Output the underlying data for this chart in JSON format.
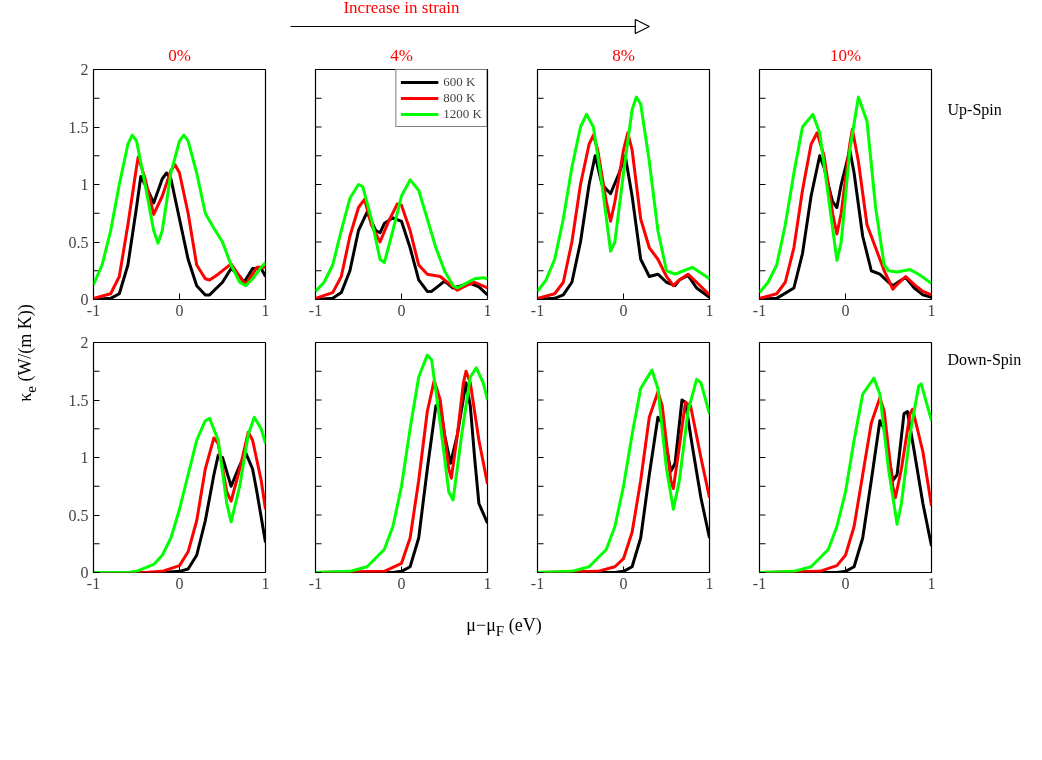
{
  "chart_data": [
    {
      "type": "line",
      "title": "0%",
      "ylabel": "κ$_{e}$ (W/(m K))",
      "xlim": [
        -1,
        1
      ],
      "ylim": [
        0,
        2
      ],
      "xticks": [
        -1,
        0,
        1
      ],
      "yticks": [
        0,
        {
          "value": 0.25,
          "label": null
        },
        0.5,
        {
          "value": 0.75,
          "label": null
        },
        1,
        {
          "value": 1.25,
          "label": null
        },
        1.5,
        {
          "value": 1.75,
          "label": null
        },
        2
      ],
      "series": [
        {
          "color": "#000000",
          "x": [
            -1,
            -0.8,
            -0.7,
            -0.6,
            -0.5,
            -0.45,
            -0.4,
            -0.3,
            -0.2,
            -0.15,
            -0.1,
            0,
            0.1,
            0.2,
            0.3,
            0.35,
            0.5,
            0.6,
            0.7,
            0.75,
            0.85,
            0.95,
            1
          ],
          "values": [
            0,
            0.01,
            0.05,
            0.3,
            0.8,
            1.07,
            1.0,
            0.84,
            1.05,
            1.1,
            1.05,
            0.7,
            0.35,
            0.12,
            0.04,
            0.04,
            0.15,
            0.27,
            0.2,
            0.15,
            0.27,
            0.27,
            0.2
          ]
        },
        {
          "color": "#ff0000",
          "x": [
            -1,
            -0.8,
            -0.7,
            -0.6,
            -0.5,
            -0.48,
            -0.4,
            -0.3,
            -0.2,
            -0.1,
            -0.05,
            0,
            0.1,
            0.2,
            0.3,
            0.35,
            0.45,
            0.6,
            0.7,
            0.77,
            0.85,
            0.9,
            1
          ],
          "values": [
            0.01,
            0.05,
            0.2,
            0.65,
            1.15,
            1.24,
            1.05,
            0.74,
            0.9,
            1.12,
            1.17,
            1.1,
            0.75,
            0.3,
            0.18,
            0.17,
            0.22,
            0.31,
            0.2,
            0.13,
            0.22,
            0.28,
            0.28
          ]
        },
        {
          "color": "#00ff00",
          "x": [
            -1,
            -0.9,
            -0.8,
            -0.7,
            -0.6,
            -0.55,
            -0.5,
            -0.4,
            -0.3,
            -0.25,
            -0.2,
            -0.1,
            0,
            0.05,
            0.1,
            0.2,
            0.3,
            0.4,
            0.5,
            0.6,
            0.7,
            0.77,
            0.85,
            0.95,
            1
          ],
          "values": [
            0.13,
            0.3,
            0.6,
            1.0,
            1.35,
            1.43,
            1.38,
            1.0,
            0.6,
            0.49,
            0.6,
            1.1,
            1.38,
            1.43,
            1.38,
            1.1,
            0.75,
            0.62,
            0.5,
            0.3,
            0.15,
            0.12,
            0.18,
            0.28,
            0.32
          ]
        }
      ]
    },
    {
      "type": "line",
      "title": "4%",
      "annotations": [
        "Increase in strain"
      ],
      "legend": "top right",
      "tick_labels": "x",
      "xlim": [
        -1,
        1
      ],
      "ylim": [
        0,
        2
      ],
      "xticks": [
        -1,
        0,
        1
      ],
      "yticks": [
        0,
        {
          "value": 0.25,
          "label": null
        },
        {
          "value": 0.5,
          "label": null
        },
        {
          "value": 0.75,
          "label": null
        },
        {
          "value": 1,
          "label": null
        },
        {
          "value": 1.25,
          "label": null
        },
        {
          "value": 1.5,
          "label": null
        },
        {
          "value": 1.75,
          "label": null
        },
        {
          "value": 2,
          "label": null
        }
      ],
      "series": [
        {
          "name": "600 K",
          "color": "#000000",
          "x": [
            -1,
            -0.8,
            -0.7,
            -0.6,
            -0.5,
            -0.4,
            -0.3,
            -0.25,
            -0.2,
            -0.1,
            0,
            0.1,
            0.2,
            0.3,
            0.35,
            0.45,
            0.5,
            0.6,
            0.7,
            0.8,
            0.9,
            1
          ],
          "values": [
            0,
            0.01,
            0.06,
            0.25,
            0.6,
            0.76,
            0.6,
            0.58,
            0.66,
            0.71,
            0.68,
            0.45,
            0.17,
            0.07,
            0.07,
            0.13,
            0.16,
            0.1,
            0.12,
            0.14,
            0.11,
            0.04
          ]
        },
        {
          "name": "800 K",
          "color": "#ff0000",
          "x": [
            -1,
            -0.8,
            -0.7,
            -0.6,
            -0.5,
            -0.43,
            -0.35,
            -0.25,
            -0.15,
            -0.05,
            0,
            0.1,
            0.2,
            0.3,
            0.45,
            0.55,
            0.65,
            0.75,
            0.85,
            1
          ],
          "values": [
            0.01,
            0.06,
            0.2,
            0.55,
            0.8,
            0.87,
            0.65,
            0.5,
            0.68,
            0.83,
            0.82,
            0.6,
            0.3,
            0.22,
            0.2,
            0.14,
            0.08,
            0.12,
            0.15,
            0.1
          ]
        },
        {
          "name": "1200 K",
          "color": "#00ff00",
          "x": [
            -1,
            -0.9,
            -0.8,
            -0.7,
            -0.6,
            -0.5,
            -0.45,
            -0.35,
            -0.25,
            -0.2,
            -0.1,
            0,
            0.1,
            0.2,
            0.3,
            0.4,
            0.5,
            0.6,
            0.65,
            0.75,
            0.85,
            0.95,
            1
          ],
          "values": [
            0.07,
            0.15,
            0.3,
            0.6,
            0.88,
            1.0,
            0.98,
            0.7,
            0.35,
            0.32,
            0.6,
            0.9,
            1.04,
            0.95,
            0.7,
            0.45,
            0.25,
            0.12,
            0.1,
            0.14,
            0.18,
            0.19,
            0.18
          ]
        }
      ]
    },
    {
      "type": "line",
      "title": "8%",
      "tick_labels": "x",
      "xlim": [
        -1,
        1
      ],
      "ylim": [
        0,
        2
      ],
      "xticks": [
        -1,
        0,
        1
      ],
      "yticks": [
        0,
        {
          "value": 0.25,
          "label": null
        },
        {
          "value": 0.5,
          "label": null
        },
        {
          "value": 0.75,
          "label": null
        },
        {
          "value": 1,
          "label": null
        },
        {
          "value": 1.25,
          "label": null
        },
        {
          "value": 1.5,
          "label": null
        },
        {
          "value": 1.75,
          "label": null
        },
        {
          "value": 2,
          "label": null
        }
      ],
      "series": [
        {
          "color": "#000000",
          "x": [
            -1,
            -0.8,
            -0.7,
            -0.6,
            -0.5,
            -0.4,
            -0.33,
            -0.25,
            -0.15,
            -0.05,
            0.02,
            0.1,
            0.2,
            0.3,
            0.4,
            0.5,
            0.6,
            0.65,
            0.75,
            0.85,
            1
          ],
          "values": [
            0,
            0.01,
            0.04,
            0.15,
            0.5,
            1.0,
            1.25,
            1.0,
            0.92,
            1.1,
            1.25,
            0.9,
            0.35,
            0.2,
            0.22,
            0.15,
            0.12,
            0.17,
            0.21,
            0.1,
            0.02
          ]
        },
        {
          "color": "#ff0000",
          "x": [
            -1,
            -0.8,
            -0.7,
            -0.6,
            -0.5,
            -0.4,
            -0.35,
            -0.3,
            -0.2,
            -0.15,
            -0.1,
            0,
            0.05,
            0.1,
            0.2,
            0.3,
            0.4,
            0.5,
            0.58,
            0.65,
            0.75,
            0.85,
            1
          ],
          "values": [
            0.01,
            0.05,
            0.15,
            0.5,
            1.0,
            1.35,
            1.43,
            1.3,
            0.85,
            0.68,
            0.85,
            1.3,
            1.45,
            1.3,
            0.7,
            0.45,
            0.35,
            0.2,
            0.12,
            0.17,
            0.22,
            0.15,
            0.04
          ]
        },
        {
          "color": "#00ff00",
          "x": [
            -1,
            -0.9,
            -0.8,
            -0.7,
            -0.6,
            -0.5,
            -0.43,
            -0.35,
            -0.25,
            -0.15,
            -0.1,
            0,
            0.1,
            0.15,
            0.2,
            0.3,
            0.4,
            0.5,
            0.6,
            0.7,
            0.8,
            0.9,
            1
          ],
          "values": [
            0.07,
            0.17,
            0.35,
            0.7,
            1.15,
            1.5,
            1.61,
            1.5,
            1.0,
            0.42,
            0.5,
            1.1,
            1.65,
            1.76,
            1.7,
            1.2,
            0.6,
            0.25,
            0.22,
            0.25,
            0.28,
            0.23,
            0.18
          ]
        }
      ]
    },
    {
      "type": "line",
      "title": "10%",
      "annotations": [
        "Up-Spin"
      ],
      "tick_labels": "x",
      "xlim": [
        -1,
        1
      ],
      "ylim": [
        0,
        2
      ],
      "xticks": [
        -1,
        0,
        1
      ],
      "yticks": [
        0,
        {
          "value": 0.25,
          "label": null
        },
        {
          "value": 0.5,
          "label": null
        },
        {
          "value": 0.75,
          "label": null
        },
        {
          "value": 1,
          "label": null
        },
        {
          "value": 1.25,
          "label": null
        },
        {
          "value": 1.5,
          "label": null
        },
        {
          "value": 1.75,
          "label": null
        },
        {
          "value": 2,
          "label": null
        }
      ],
      "series": [
        {
          "color": "#000000",
          "x": [
            -1,
            -0.8,
            -0.6,
            -0.5,
            -0.4,
            -0.3,
            -0.25,
            -0.15,
            -0.1,
            -0.05,
            0.05,
            0.1,
            0.2,
            0.3,
            0.4,
            0.5,
            0.55,
            0.65,
            0.7,
            0.8,
            0.9,
            1
          ],
          "values": [
            0,
            0.01,
            0.1,
            0.4,
            0.9,
            1.25,
            1.15,
            0.85,
            0.8,
            1.0,
            1.3,
            1.1,
            0.55,
            0.25,
            0.22,
            0.15,
            0.12,
            0.17,
            0.19,
            0.1,
            0.04,
            0.02
          ]
        },
        {
          "color": "#ff0000",
          "x": [
            -1,
            -0.8,
            -0.7,
            -0.6,
            -0.5,
            -0.4,
            -0.33,
            -0.25,
            -0.15,
            -0.1,
            -0.05,
            0.05,
            0.08,
            0.15,
            0.25,
            0.35,
            0.45,
            0.55,
            0.6,
            0.7,
            0.8,
            0.9,
            1
          ],
          "values": [
            0.01,
            0.05,
            0.15,
            0.45,
            0.95,
            1.35,
            1.45,
            1.25,
            0.75,
            0.57,
            0.75,
            1.35,
            1.48,
            1.2,
            0.65,
            0.45,
            0.25,
            0.09,
            0.13,
            0.2,
            0.13,
            0.07,
            0.04
          ]
        },
        {
          "color": "#00ff00",
          "x": [
            -1,
            -0.9,
            -0.8,
            -0.7,
            -0.6,
            -0.5,
            -0.38,
            -0.3,
            -0.2,
            -0.1,
            -0.05,
            0.05,
            0.15,
            0.25,
            0.35,
            0.45,
            0.5,
            0.6,
            0.75,
            0.85,
            1
          ],
          "values": [
            0.06,
            0.15,
            0.3,
            0.65,
            1.1,
            1.5,
            1.61,
            1.45,
            0.9,
            0.34,
            0.5,
            1.3,
            1.76,
            1.55,
            0.8,
            0.3,
            0.25,
            0.24,
            0.26,
            0.22,
            0.14
          ]
        }
      ]
    },
    {
      "type": "line",
      "xlim": [
        -1,
        1
      ],
      "ylim": [
        0,
        2
      ],
      "xticks": [
        -1,
        0,
        1
      ],
      "yticks": [
        0,
        {
          "value": 0.25,
          "label": null
        },
        0.5,
        {
          "value": 0.75,
          "label": null
        },
        1,
        {
          "value": 1.25,
          "label": null
        },
        1.5,
        {
          "value": 1.75,
          "label": null
        },
        2
      ],
      "series": [
        {
          "color": "#000000",
          "x": [
            -1,
            -0.2,
            0,
            0.1,
            0.2,
            0.3,
            0.4,
            0.45,
            0.5,
            0.6,
            0.7,
            0.77,
            0.85,
            0.9,
            1
          ],
          "values": [
            0,
            0,
            0.01,
            0.03,
            0.15,
            0.45,
            0.85,
            1.02,
            1.0,
            0.75,
            0.93,
            1.04,
            0.9,
            0.7,
            0.26
          ]
        },
        {
          "color": "#ff0000",
          "x": [
            -1,
            -0.4,
            -0.2,
            0,
            0.1,
            0.2,
            0.3,
            0.4,
            0.45,
            0.55,
            0.6,
            0.7,
            0.8,
            0.85,
            0.95,
            1
          ],
          "values": [
            0,
            0,
            0.01,
            0.06,
            0.18,
            0.45,
            0.9,
            1.17,
            1.12,
            0.7,
            0.62,
            0.9,
            1.22,
            1.15,
            0.8,
            0.55
          ]
        },
        {
          "color": "#00ff00",
          "x": [
            -1,
            -0.6,
            -0.5,
            -0.3,
            -0.2,
            -0.1,
            0,
            0.1,
            0.2,
            0.3,
            0.35,
            0.45,
            0.55,
            0.6,
            0.7,
            0.8,
            0.87,
            0.95,
            1
          ],
          "values": [
            0,
            0,
            0.01,
            0.07,
            0.15,
            0.3,
            0.55,
            0.85,
            1.15,
            1.32,
            1.34,
            1.15,
            0.6,
            0.44,
            0.75,
            1.2,
            1.35,
            1.25,
            1.12
          ]
        }
      ]
    },
    {
      "type": "line",
      "xlabel": "μ−μ$_{F}$ (eV)",
      "tick_labels": "x",
      "xlim": [
        -1,
        1
      ],
      "ylim": [
        0,
        2
      ],
      "xticks": [
        -1,
        0,
        1
      ],
      "yticks": [
        0,
        {
          "value": 0.25,
          "label": null
        },
        {
          "value": 0.5,
          "label": null
        },
        {
          "value": 0.75,
          "label": null
        },
        {
          "value": 1,
          "label": null
        },
        {
          "value": 1.25,
          "label": null
        },
        {
          "value": 1.5,
          "label": null
        },
        {
          "value": 1.75,
          "label": null
        },
        {
          "value": 2,
          "label": null
        }
      ],
      "series": [
        {
          "color": "#000000",
          "x": [
            -1,
            -0.1,
            0,
            0.1,
            0.2,
            0.3,
            0.4,
            0.45,
            0.5,
            0.57,
            0.65,
            0.75,
            0.8,
            0.85,
            0.9,
            1
          ],
          "values": [
            0,
            0,
            0.01,
            0.05,
            0.3,
            0.9,
            1.45,
            1.45,
            1.2,
            0.95,
            1.2,
            1.65,
            1.45,
            1.0,
            0.6,
            0.43
          ]
        },
        {
          "color": "#ff0000",
          "x": [
            -1,
            -0.2,
            0,
            0.1,
            0.2,
            0.3,
            0.38,
            0.45,
            0.55,
            0.58,
            0.65,
            0.72,
            0.75,
            0.8,
            0.9,
            1
          ],
          "values": [
            0,
            0.01,
            0.08,
            0.3,
            0.8,
            1.4,
            1.67,
            1.5,
            0.9,
            0.82,
            1.2,
            1.65,
            1.75,
            1.65,
            1.15,
            0.77
          ]
        },
        {
          "color": "#00ff00",
          "x": [
            -1,
            -0.6,
            -0.4,
            -0.2,
            -0.1,
            0,
            0.1,
            0.2,
            0.3,
            0.35,
            0.45,
            0.55,
            0.6,
            0.7,
            0.8,
            0.87,
            0.95,
            1
          ],
          "values": [
            0,
            0.01,
            0.05,
            0.2,
            0.4,
            0.75,
            1.25,
            1.7,
            1.89,
            1.85,
            1.3,
            0.7,
            0.63,
            1.2,
            1.7,
            1.78,
            1.65,
            1.5
          ]
        }
      ]
    },
    {
      "type": "line",
      "tick_labels": "x",
      "xlim": [
        -1,
        1
      ],
      "ylim": [
        0,
        2
      ],
      "xticks": [
        -1,
        0,
        1
      ],
      "yticks": [
        0,
        {
          "value": 0.25,
          "label": null
        },
        {
          "value": 0.5,
          "label": null
        },
        {
          "value": 0.75,
          "label": null
        },
        {
          "value": 1,
          "label": null
        },
        {
          "value": 1.25,
          "label": null
        },
        {
          "value": 1.5,
          "label": null
        },
        {
          "value": 1.75,
          "label": null
        },
        {
          "value": 2,
          "label": null
        }
      ],
      "series": [
        {
          "color": "#000000",
          "x": [
            -1,
            -0.1,
            0,
            0.1,
            0.2,
            0.3,
            0.4,
            0.45,
            0.55,
            0.6,
            0.68,
            0.72,
            0.8,
            0.9,
            1
          ],
          "values": [
            0,
            0,
            0.01,
            0.05,
            0.3,
            0.85,
            1.35,
            1.3,
            0.88,
            0.95,
            1.5,
            1.48,
            1.1,
            0.65,
            0.3
          ]
        },
        {
          "color": "#ff0000",
          "x": [
            -1,
            -0.3,
            -0.1,
            0,
            0.1,
            0.2,
            0.3,
            0.4,
            0.45,
            0.55,
            0.58,
            0.65,
            0.72,
            0.78,
            0.9,
            1
          ],
          "values": [
            0,
            0.01,
            0.05,
            0.12,
            0.35,
            0.8,
            1.35,
            1.57,
            1.45,
            0.8,
            0.73,
            1.1,
            1.48,
            1.45,
            1.0,
            0.65
          ]
        },
        {
          "color": "#00ff00",
          "x": [
            -1,
            -0.6,
            -0.4,
            -0.2,
            -0.1,
            0,
            0.1,
            0.2,
            0.33,
            0.4,
            0.5,
            0.58,
            0.65,
            0.75,
            0.85,
            0.9,
            1
          ],
          "values": [
            0,
            0.01,
            0.05,
            0.2,
            0.4,
            0.75,
            1.2,
            1.6,
            1.76,
            1.6,
            0.9,
            0.55,
            0.8,
            1.4,
            1.68,
            1.65,
            1.38
          ]
        }
      ]
    },
    {
      "type": "line",
      "annotations": [
        "Down-Spin"
      ],
      "tick_labels": "x",
      "xlim": [
        -1,
        1
      ],
      "ylim": [
        0,
        2
      ],
      "xticks": [
        -1,
        0,
        1
      ],
      "yticks": [
        0,
        {
          "value": 0.25,
          "label": null
        },
        {
          "value": 0.5,
          "label": null
        },
        {
          "value": 0.75,
          "label": null
        },
        {
          "value": 1,
          "label": null
        },
        {
          "value": 1.25,
          "label": null
        },
        {
          "value": 1.5,
          "label": null
        },
        {
          "value": 1.75,
          "label": null
        },
        {
          "value": 2,
          "label": null
        }
      ],
      "series": [
        {
          "color": "#000000",
          "x": [
            -1,
            -0.1,
            0,
            0.1,
            0.2,
            0.3,
            0.4,
            0.45,
            0.55,
            0.6,
            0.68,
            0.72,
            0.8,
            0.9,
            1
          ],
          "values": [
            0,
            0,
            0.01,
            0.05,
            0.3,
            0.8,
            1.32,
            1.25,
            0.8,
            0.85,
            1.38,
            1.4,
            1.05,
            0.6,
            0.23
          ]
        },
        {
          "color": "#ff0000",
          "x": [
            -1,
            -0.3,
            -0.1,
            0,
            0.1,
            0.2,
            0.3,
            0.4,
            0.45,
            0.55,
            0.58,
            0.65,
            0.75,
            0.78,
            0.9,
            1
          ],
          "values": [
            0,
            0.01,
            0.06,
            0.15,
            0.4,
            0.85,
            1.3,
            1.52,
            1.4,
            0.75,
            0.65,
            0.9,
            1.38,
            1.42,
            1.05,
            0.58
          ]
        },
        {
          "color": "#00ff00",
          "x": [
            -1,
            -0.6,
            -0.4,
            -0.2,
            -0.1,
            0,
            0.1,
            0.2,
            0.33,
            0.4,
            0.5,
            0.6,
            0.65,
            0.75,
            0.85,
            0.88,
            1
          ],
          "values": [
            0,
            0.01,
            0.05,
            0.2,
            0.4,
            0.7,
            1.15,
            1.55,
            1.69,
            1.55,
            0.9,
            0.42,
            0.6,
            1.2,
            1.62,
            1.64,
            1.32
          ]
        }
      ]
    }
  ]
}
